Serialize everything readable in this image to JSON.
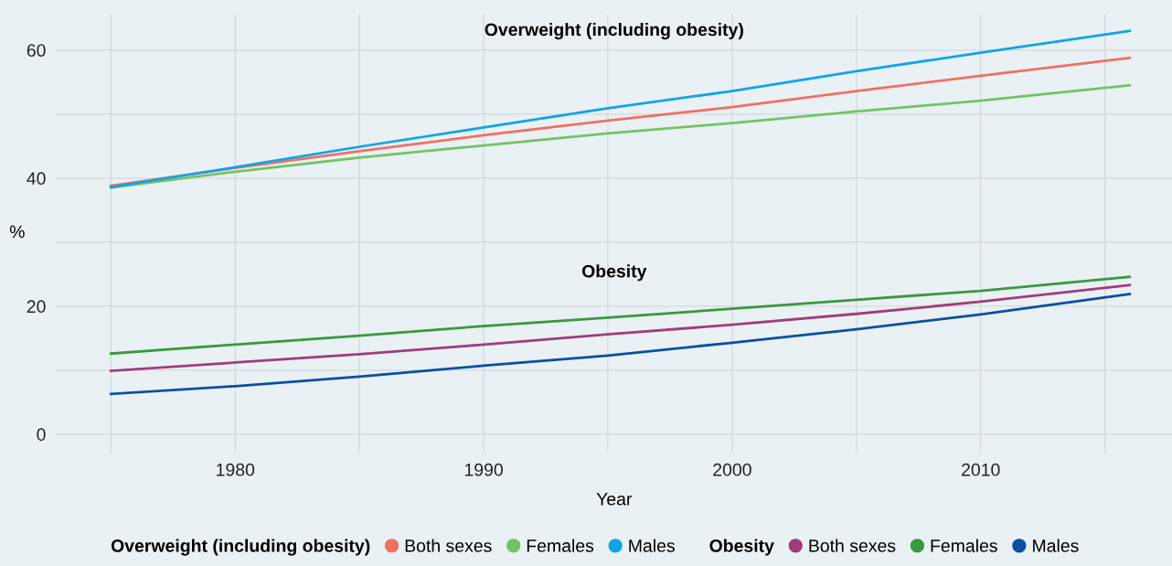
{
  "chart_data": {
    "type": "line",
    "xlabel": "Year",
    "ylabel": "%",
    "legend_title": [
      "Overweight (including obesity)",
      "Obesity"
    ],
    "x": [
      1975,
      1980,
      1985,
      1990,
      1995,
      2000,
      2005,
      2010,
      2016
    ],
    "series": [
      {
        "name": "Both sexes",
        "color": "#f07062",
        "values": [
          38.8,
          41.6,
          44.2,
          46.7,
          49.0,
          51.1,
          53.6,
          56.0,
          58.8
        ]
      },
      {
        "name": "Females",
        "color": "#72c462",
        "values": [
          38.5,
          41.0,
          43.2,
          45.1,
          47.0,
          48.6,
          50.4,
          52.1,
          54.5
        ]
      },
      {
        "name": "Males",
        "color": "#12a4e4",
        "values": [
          38.6,
          41.7,
          44.9,
          47.9,
          50.9,
          53.6,
          56.7,
          59.6,
          63.0
        ]
      },
      {
        "name": "Both sexes",
        "color": "#a23c7a",
        "values": [
          9.9,
          11.2,
          12.5,
          14.0,
          15.6,
          17.1,
          18.8,
          20.7,
          23.3
        ]
      },
      {
        "name": "Females",
        "color": "#3a983e",
        "values": [
          12.6,
          14.0,
          15.4,
          16.9,
          18.2,
          19.6,
          21.0,
          22.4,
          24.6
        ]
      },
      {
        "name": "Males",
        "color": "#0c4ea2",
        "values": [
          6.3,
          7.5,
          9.0,
          10.7,
          12.3,
          14.3,
          16.4,
          18.7,
          21.9
        ]
      }
    ],
    "annotations": [
      "Overweight (including obesity)",
      "Obesity"
    ],
    "xlim": [
      1972.8,
      2017.7
    ],
    "ylim": [
      -2.9,
      65.7
    ],
    "xticks": [
      {
        "value": 1975,
        "label": null
      },
      1980,
      {
        "value": 1985,
        "label": null
      },
      1990,
      {
        "value": 1995,
        "label": null
      },
      2000,
      {
        "value": 2005,
        "label": null
      },
      2010,
      {
        "value": 2015,
        "label": null
      }
    ],
    "yticks": [
      0,
      {
        "value": 10,
        "label": null
      },
      20,
      {
        "value": 30,
        "label": null
      },
      40,
      {
        "value": 50,
        "label": null
      },
      60
    ],
    "grid": true,
    "legend": "bottom",
    "line_style": "solid",
    "marker": "none"
  }
}
